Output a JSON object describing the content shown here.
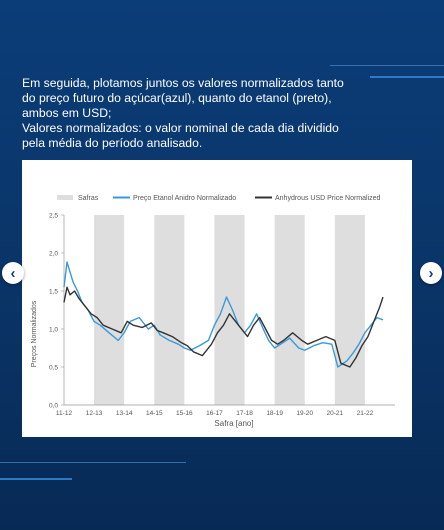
{
  "intro": {
    "line1": "Em seguida, plotamos juntos os valores normalizados tanto",
    "line2": "do preço futuro do açúcar(azul), quanto do etanol (preto),",
    "line3": "ambos em USD;",
    "line4": "Valores normalizados: o valor nominal de cada dia dividido",
    "line5": "pela média do período analisado."
  },
  "nav": {
    "prev_icon": "chevron-left-icon",
    "next_icon": "chevron-right-icon"
  },
  "colors": {
    "blue": "#3a9ad9",
    "black": "#333333",
    "shade": "#dedede"
  },
  "chart_data": {
    "type": "line",
    "xlabel": "Safra [ano]",
    "ylabel": "Preços Normalizados",
    "ylim": [
      0,
      2.5
    ],
    "yticks": [
      "0,0",
      "0,5",
      "1,0",
      "1,5",
      "2,0",
      "2,5"
    ],
    "categories": [
      "11-12",
      "12-13",
      "13-14",
      "14-15",
      "15-16",
      "16-17",
      "17-18",
      "18-19",
      "19-20",
      "20-21",
      "21-22"
    ],
    "legend": [
      "Safras",
      "Preço Etanol Anidro Normalizado",
      "Anhydrous USD Price Normalized"
    ],
    "shaded_safras": [
      "12-13",
      "14-15",
      "16-17",
      "18-19",
      "20-21"
    ],
    "series": [
      {
        "name": "Preço Etanol Anidro Normalizado",
        "color": "#3a9ad9",
        "x": [
          0,
          0.1,
          0.2,
          0.3,
          0.45,
          0.6,
          0.8,
          1.0,
          1.2,
          1.5,
          1.8,
          2.0,
          2.2,
          2.5,
          2.8,
          3.0,
          3.2,
          3.5,
          3.8,
          4.0,
          4.2,
          4.5,
          4.8,
          5.0,
          5.2,
          5.4,
          5.6,
          5.8,
          6.0,
          6.2,
          6.4,
          6.6,
          6.8,
          7.0,
          7.2,
          7.5,
          7.8,
          8.0,
          8.3,
          8.6,
          8.9,
          9.1,
          9.4,
          9.6,
          9.8,
          10.0,
          10.2,
          10.4,
          10.6
        ],
        "y": [
          1.55,
          1.88,
          1.75,
          1.62,
          1.5,
          1.35,
          1.25,
          1.1,
          1.05,
          0.95,
          0.85,
          0.95,
          1.1,
          1.15,
          1.0,
          1.05,
          0.92,
          0.85,
          0.8,
          0.75,
          0.72,
          0.78,
          0.85,
          1.05,
          1.2,
          1.42,
          1.25,
          1.05,
          0.95,
          1.05,
          1.2,
          1.02,
          0.85,
          0.75,
          0.8,
          0.88,
          0.75,
          0.72,
          0.78,
          0.82,
          0.8,
          0.5,
          0.58,
          0.68,
          0.8,
          0.95,
          1.05,
          1.15,
          1.12
        ]
      },
      {
        "name": "Anhydrous USD Price Normalized",
        "color": "#333333",
        "x": [
          0,
          0.1,
          0.2,
          0.35,
          0.5,
          0.7,
          0.9,
          1.1,
          1.3,
          1.6,
          1.9,
          2.1,
          2.3,
          2.6,
          2.9,
          3.1,
          3.3,
          3.6,
          3.9,
          4.1,
          4.3,
          4.6,
          4.9,
          5.1,
          5.3,
          5.5,
          5.7,
          5.9,
          6.1,
          6.3,
          6.5,
          6.7,
          6.9,
          7.1,
          7.3,
          7.6,
          7.9,
          8.1,
          8.4,
          8.7,
          9.0,
          9.2,
          9.5,
          9.7,
          9.9,
          10.1,
          10.3,
          10.5,
          10.6
        ],
        "y": [
          1.35,
          1.55,
          1.45,
          1.5,
          1.4,
          1.3,
          1.2,
          1.15,
          1.05,
          1.0,
          0.95,
          1.1,
          1.05,
          1.02,
          1.08,
          0.98,
          0.95,
          0.9,
          0.82,
          0.78,
          0.7,
          0.65,
          0.8,
          0.95,
          1.05,
          1.2,
          1.1,
          1.0,
          0.9,
          1.05,
          1.15,
          1.0,
          0.85,
          0.8,
          0.85,
          0.95,
          0.85,
          0.8,
          0.85,
          0.9,
          0.85,
          0.55,
          0.5,
          0.62,
          0.78,
          0.9,
          1.1,
          1.3,
          1.42
        ]
      }
    ]
  }
}
